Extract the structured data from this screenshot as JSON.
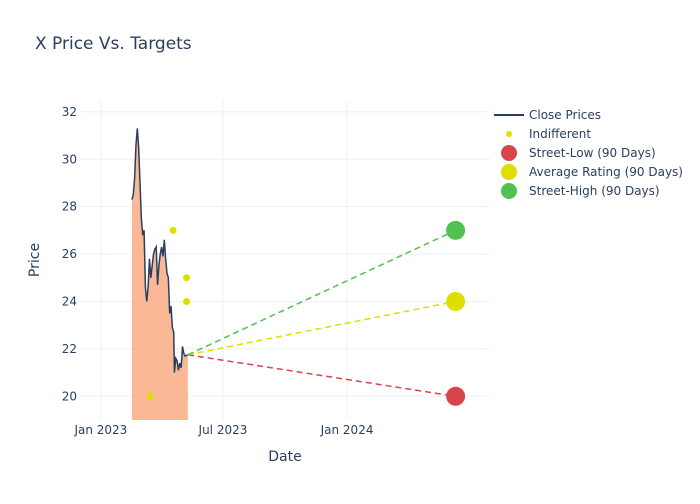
{
  "chart_data": {
    "type": "line",
    "title": "X Price Vs. Targets",
    "xlabel": "Date",
    "ylabel": "Price",
    "x_range": [
      "2022-12-01",
      "2024-07-31"
    ],
    "ylim": [
      19,
      32.5
    ],
    "x_ticks": [
      {
        "date": "2023-01-01",
        "label": "Jan 2023"
      },
      {
        "date": "2023-07-01",
        "label": "Jul 2023"
      },
      {
        "date": "2024-01-01",
        "label": "Jan 2024"
      }
    ],
    "y_ticks": [
      20,
      22,
      24,
      26,
      28,
      30,
      32
    ],
    "legend": [
      {
        "name": "Close Prices",
        "symbol": "line",
        "color": "#2a3f5f"
      },
      {
        "name": "Indifferent",
        "symbol": "small-dot",
        "color": "#dede00"
      },
      {
        "name": "Street-Low (90 Days)",
        "symbol": "big-dot",
        "color": "#d64549"
      },
      {
        "name": "Average Rating (90 Days)",
        "symbol": "big-dot",
        "color": "#dede00"
      },
      {
        "name": "Street-High (90 Days)",
        "symbol": "big-dot",
        "color": "#4fc24f"
      }
    ],
    "close_prices": {
      "color": "#2a3f5f",
      "fill_color": "#fbb896",
      "points": [
        [
          "2023-02-16",
          28.3
        ],
        [
          "2023-02-18",
          28.5
        ],
        [
          "2023-02-20",
          29.2
        ],
        [
          "2023-02-22",
          30.6
        ],
        [
          "2023-02-24",
          31.3
        ],
        [
          "2023-02-26",
          30.5
        ],
        [
          "2023-02-28",
          29.0
        ],
        [
          "2023-03-02",
          27.5
        ],
        [
          "2023-03-04",
          26.8
        ],
        [
          "2023-03-06",
          27.0
        ],
        [
          "2023-03-08",
          24.6
        ],
        [
          "2023-03-10",
          24.0
        ],
        [
          "2023-03-12",
          24.6
        ],
        [
          "2023-03-14",
          25.8
        ],
        [
          "2023-03-16",
          25.0
        ],
        [
          "2023-03-18",
          25.5
        ],
        [
          "2023-03-20",
          26.0
        ],
        [
          "2023-03-22",
          26.2
        ],
        [
          "2023-03-24",
          26.3
        ],
        [
          "2023-03-26",
          24.7
        ],
        [
          "2023-03-28",
          25.5
        ],
        [
          "2023-03-30",
          26.0
        ],
        [
          "2023-04-01",
          26.3
        ],
        [
          "2023-04-03",
          25.9
        ],
        [
          "2023-04-05",
          26.6
        ],
        [
          "2023-04-07",
          25.8
        ],
        [
          "2023-04-09",
          25.2
        ],
        [
          "2023-04-11",
          25.0
        ],
        [
          "2023-04-13",
          23.5
        ],
        [
          "2023-04-15",
          23.8
        ],
        [
          "2023-04-17",
          22.9
        ],
        [
          "2023-04-19",
          22.7
        ],
        [
          "2023-04-20",
          21.0
        ],
        [
          "2023-04-22",
          21.6
        ],
        [
          "2023-04-24",
          21.5
        ],
        [
          "2023-04-26",
          21.1
        ],
        [
          "2023-04-28",
          21.4
        ],
        [
          "2023-04-30",
          21.2
        ],
        [
          "2023-05-02",
          22.1
        ],
        [
          "2023-05-04",
          21.8
        ],
        [
          "2023-05-06",
          21.7
        ],
        [
          "2023-05-10",
          21.75
        ]
      ]
    },
    "indifferent_ratings": [
      [
        "2023-03-15",
        20.0
      ],
      [
        "2023-04-18",
        27.0
      ],
      [
        "2023-05-08",
        25.0
      ],
      [
        "2023-05-08",
        24.0
      ]
    ],
    "targets": {
      "start": [
        "2023-05-10",
        21.75
      ],
      "target_date": "2024-06-10",
      "street_low": {
        "value": 20,
        "color": "#d64549"
      },
      "average": {
        "value": 24,
        "color": "#dede00"
      },
      "street_high": {
        "value": 27,
        "color": "#4fc24f"
      }
    }
  }
}
